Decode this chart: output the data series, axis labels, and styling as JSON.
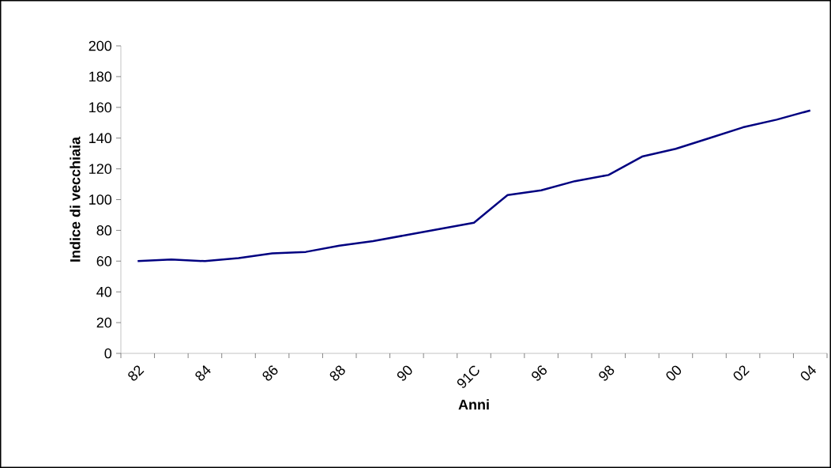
{
  "chart_data": {
    "type": "line",
    "xlabel": "Anni",
    "ylabel": "Indice di vecchiaia",
    "categories": [
      "82",
      null,
      "84",
      null,
      "86",
      null,
      "88",
      null,
      "90",
      null,
      "91C",
      null,
      "96",
      null,
      "98",
      null,
      "00",
      null,
      "02",
      null,
      "04"
    ],
    "values": [
      60,
      61,
      60,
      62,
      65,
      66,
      70,
      73,
      77,
      81,
      85,
      103,
      106,
      112,
      116,
      128,
      133,
      140,
      147,
      152,
      158
    ],
    "color": "#000080",
    "ylim": [
      0,
      200
    ],
    "yticks": [
      0,
      20,
      40,
      60,
      80,
      100,
      120,
      140,
      160,
      180,
      200
    ],
    "marker": "none",
    "line_style": "solid"
  }
}
